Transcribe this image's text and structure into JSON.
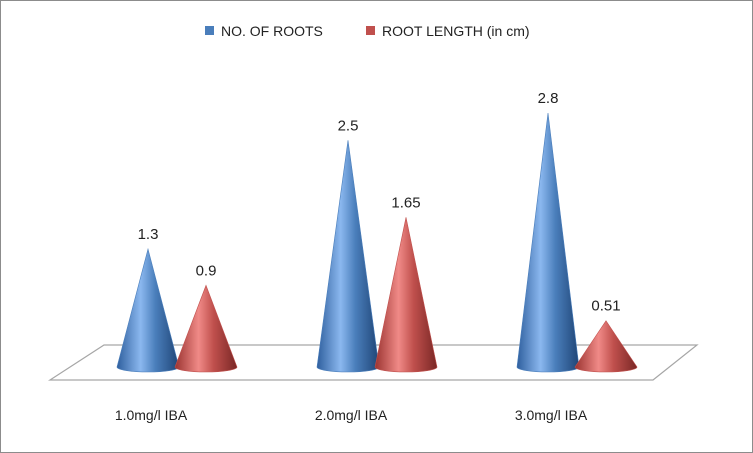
{
  "chart_data": {
    "type": "bar",
    "style": "3d-cone",
    "categories": [
      "1.0mg/l IBA",
      "2.0mg/l IBA",
      "3.0mg/l IBA"
    ],
    "series": [
      {
        "name": "NO. OF ROOTS",
        "values": [
          1.3,
          2.5,
          2.8
        ],
        "labels": [
          "1.3",
          "2.5",
          "2.8"
        ],
        "color": "#4a7ebb"
      },
      {
        "name": "ROOT LENGTH (in cm)",
        "values": [
          0.9,
          1.65,
          0.51
        ],
        "labels": [
          "0.9",
          "1.65",
          "0.51"
        ],
        "color": "#c0504d"
      }
    ],
    "ylim": [
      0,
      2.8
    ],
    "legend_position": "top",
    "grid": false,
    "y_axis_visible": false
  }
}
